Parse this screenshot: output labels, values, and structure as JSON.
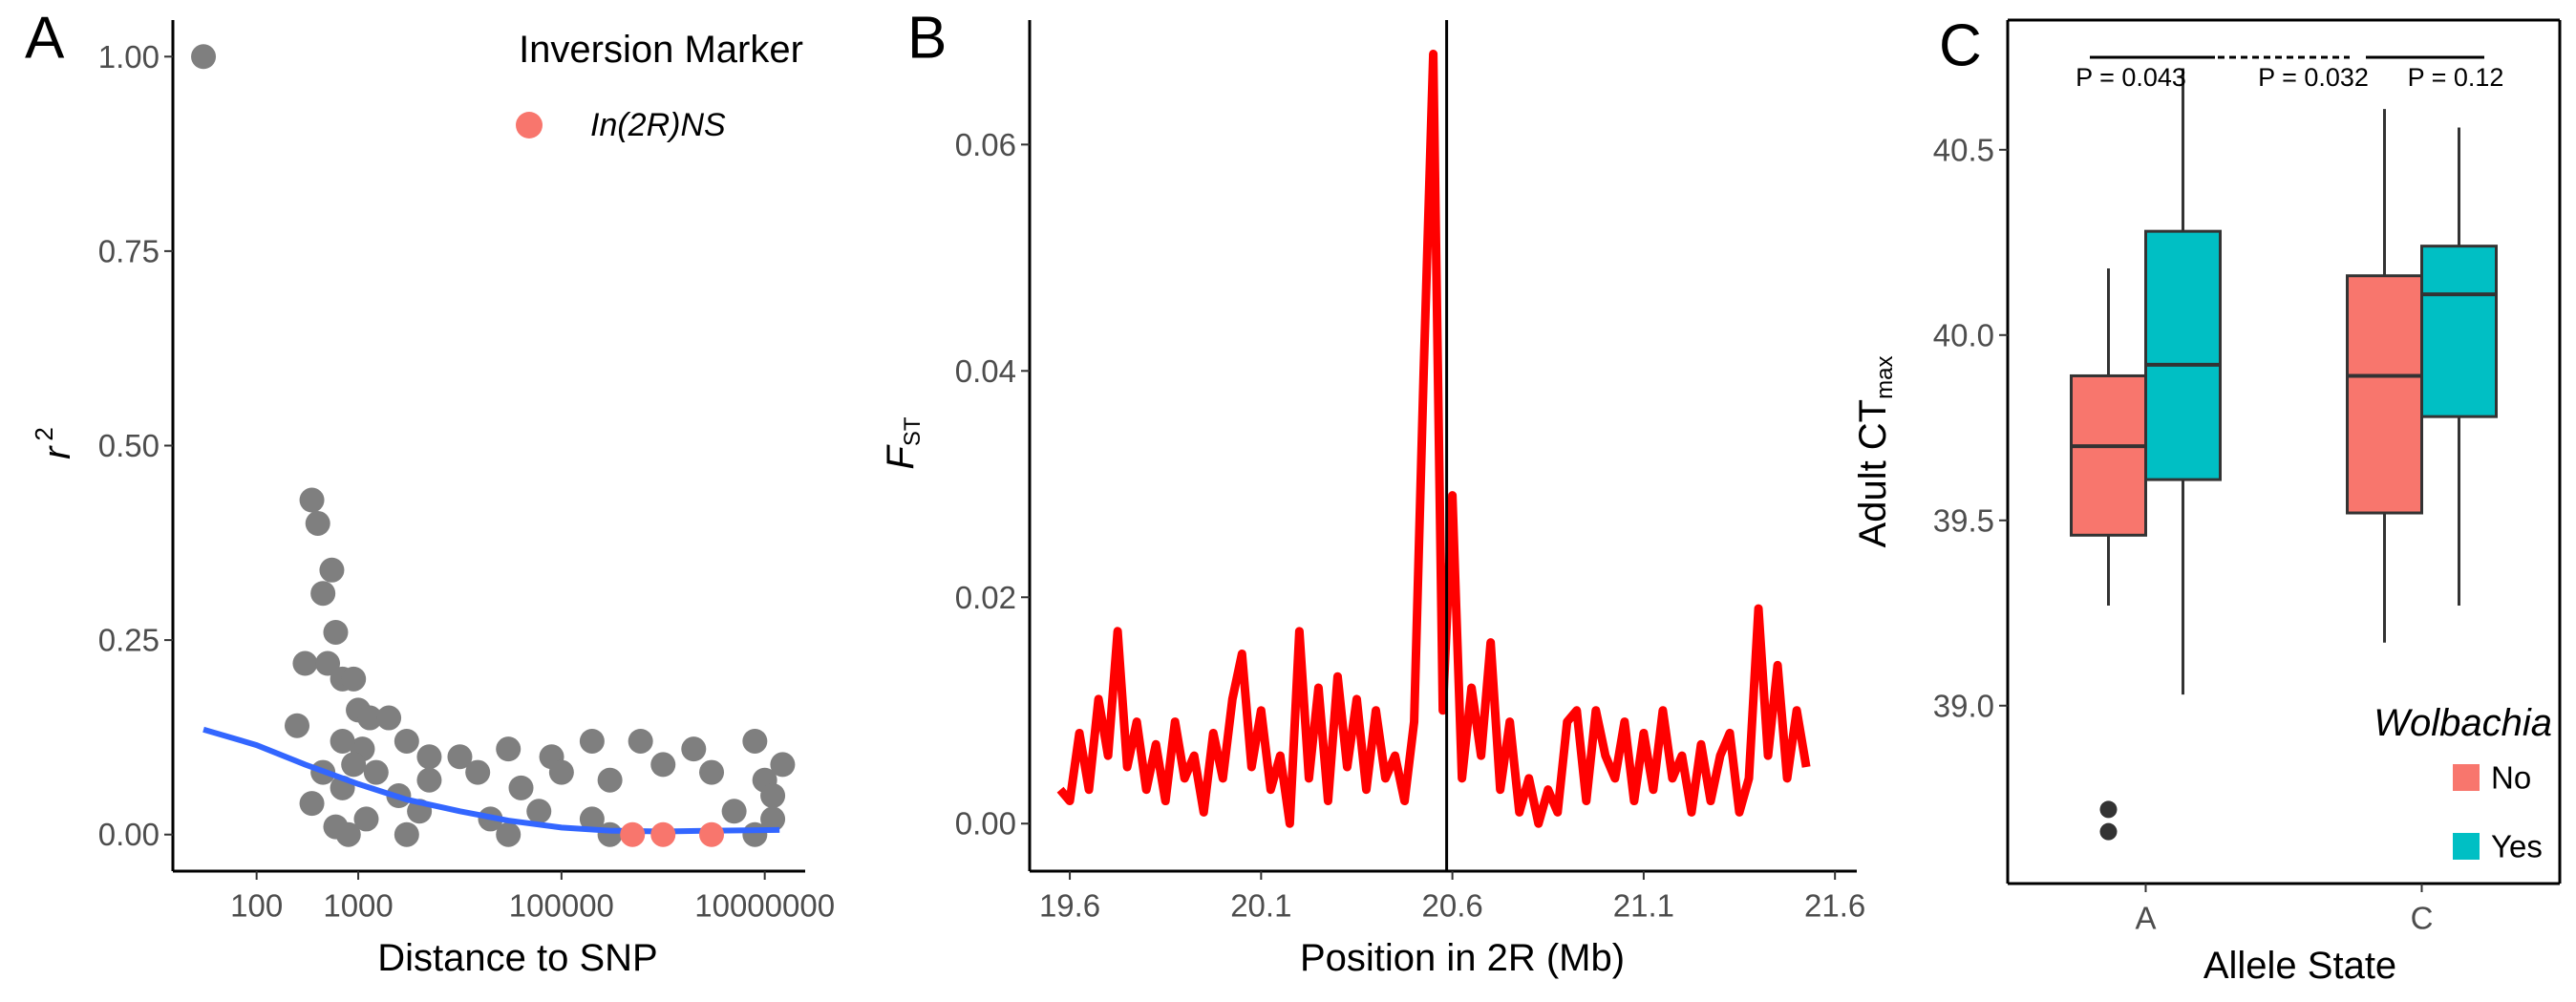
{
  "chart_data": [
    {
      "type": "scatter",
      "label": "A",
      "xlabel": "Distance to SNP",
      "ylabel": "r",
      "ylabel_sup": "2",
      "xlog": true,
      "xlim": [
        15,
        25000000
      ],
      "xticks": [
        100,
        1000,
        100000,
        10000000
      ],
      "ylim": [
        -0.047,
        1.047
      ],
      "yticks": [
        {
          "value": 0,
          "label": "0.00"
        },
        0.25,
        {
          "value": 0.5,
          "label": "0.50"
        },
        0.75,
        {
          "value": 1,
          "label": "1.00"
        }
      ],
      "legend_title": "Inversion Marker",
      "points": {
        "color": "#7f7f7f",
        "x": [
          30,
          250,
          350,
          400,
          450,
          550,
          600,
          700,
          900,
          1000,
          300,
          500,
          1300,
          2000,
          3000,
          5000,
          10000,
          30000,
          80000,
          200000,
          600000,
          2000000,
          8000000,
          350,
          450,
          700,
          1500,
          2500,
          5000,
          15000,
          40000,
          100000,
          300000,
          1000000,
          3000000,
          10000000,
          12000000,
          600,
          1200,
          4000,
          20000,
          60000,
          200000,
          5000000,
          800,
          3000,
          30000,
          300000,
          8000000,
          12000000,
          15000000,
          1100,
          700,
          900
        ],
        "y": [
          1.0,
          0.14,
          0.43,
          0.4,
          0.31,
          0.34,
          0.26,
          0.2,
          0.2,
          0.16,
          0.22,
          0.22,
          0.15,
          0.15,
          0.12,
          0.1,
          0.1,
          0.11,
          0.1,
          0.12,
          0.12,
          0.11,
          0.12,
          0.04,
          0.08,
          0.06,
          0.08,
          0.05,
          0.07,
          0.08,
          0.06,
          0.08,
          0.07,
          0.09,
          0.08,
          0.07,
          0.02,
          0.01,
          0.02,
          0.03,
          0.02,
          0.03,
          0.02,
          0.03,
          0.0,
          0.0,
          0.0,
          0.0,
          0.0,
          0.05,
          0.09,
          0.11,
          0.12,
          0.09
        ]
      },
      "highlight": {
        "name": "In(2R)NS",
        "color": "#f8766d",
        "x": [
          500000,
          1000000,
          3000000
        ],
        "y": [
          0.0,
          0.0,
          0.0
        ]
      },
      "trend": {
        "color": "#3366ff",
        "x": [
          30,
          100,
          300,
          1000,
          3000,
          10000,
          30000,
          100000,
          300000,
          1000000,
          3000000,
          14000000
        ],
        "y": [
          0.135,
          0.115,
          0.09,
          0.065,
          0.045,
          0.03,
          0.018,
          0.009,
          0.005,
          0.004,
          0.005,
          0.006
        ]
      }
    },
    {
      "type": "line",
      "label": "B",
      "xlabel": "Position in 2R (Mb)",
      "ylabel": "F",
      "ylabel_sub": "ST",
      "color": "#ff0000",
      "xlim": [
        19.495,
        21.657
      ],
      "xticks": [
        19.6,
        20.1,
        20.6,
        21.1,
        21.6
      ],
      "ylim": [
        -0.0042,
        0.071
      ],
      "yticks": [
        {
          "value": 0,
          "label": "0.00"
        },
        0.02,
        0.04,
        0.06
      ],
      "vline": 20.585,
      "x": [
        19.575,
        19.6,
        19.625,
        19.65,
        19.675,
        19.7,
        19.725,
        19.75,
        19.775,
        19.8,
        19.825,
        19.85,
        19.875,
        19.9,
        19.925,
        19.95,
        19.975,
        20.0,
        20.025,
        20.05,
        20.075,
        20.1,
        20.125,
        20.15,
        20.175,
        20.2,
        20.225,
        20.25,
        20.275,
        20.3,
        20.325,
        20.35,
        20.375,
        20.4,
        20.425,
        20.45,
        20.475,
        20.5,
        20.525,
        20.55,
        20.575,
        20.6,
        20.625,
        20.65,
        20.675,
        20.7,
        20.725,
        20.75,
        20.775,
        20.8,
        20.825,
        20.85,
        20.875,
        20.9,
        20.925,
        20.95,
        20.975,
        21.0,
        21.025,
        21.05,
        21.075,
        21.1,
        21.125,
        21.15,
        21.175,
        21.2,
        21.225,
        21.25,
        21.275,
        21.3,
        21.325,
        21.35,
        21.375,
        21.4,
        21.425,
        21.45,
        21.475,
        21.5,
        21.525
      ],
      "y": [
        0.003,
        0.002,
        0.008,
        0.003,
        0.011,
        0.006,
        0.017,
        0.005,
        0.009,
        0.003,
        0.007,
        0.002,
        0.009,
        0.004,
        0.006,
        0.001,
        0.008,
        0.004,
        0.011,
        0.015,
        0.005,
        0.01,
        0.003,
        0.006,
        0.0,
        0.017,
        0.004,
        0.012,
        0.002,
        0.013,
        0.005,
        0.011,
        0.003,
        0.01,
        0.004,
        0.006,
        0.002,
        0.009,
        0.04,
        0.068,
        0.01,
        0.029,
        0.004,
        0.012,
        0.006,
        0.016,
        0.003,
        0.009,
        0.001,
        0.004,
        0.0,
        0.003,
        0.001,
        0.009,
        0.01,
        0.002,
        0.01,
        0.006,
        0.004,
        0.009,
        0.002,
        0.008,
        0.003,
        0.01,
        0.004,
        0.006,
        0.001,
        0.007,
        0.002,
        0.006,
        0.008,
        0.001,
        0.004,
        0.019,
        0.006,
        0.014,
        0.004,
        0.01,
        0.005
      ]
    },
    {
      "type": "box",
      "label": "C",
      "xlabel": "Allele State",
      "ylabel": "Adult CT",
      "ylabel_sub": "max",
      "categories": [
        "A",
        "C"
      ],
      "ylim": [
        38.52,
        40.85
      ],
      "yticks": [
        {
          "value": 39,
          "label": "39.0"
        },
        39.5,
        {
          "value": 40,
          "label": "40.0"
        },
        40.5
      ],
      "legend_title": "Wolbachia",
      "series": [
        {
          "name": "No",
          "color": "#f8766d",
          "boxes": [
            {
              "min": 39.27,
              "q1": 39.46,
              "median": 39.7,
              "q3": 39.89,
              "max": 40.18,
              "outliers": [
                38.72,
                38.66
              ]
            },
            {
              "min": 39.17,
              "q1": 39.52,
              "median": 39.89,
              "q3": 40.16,
              "max": 40.61,
              "outliers": []
            }
          ]
        },
        {
          "name": "Yes",
          "color": "#00bfc4",
          "boxes": [
            {
              "min": 39.03,
              "q1": 39.61,
              "median": 39.92,
              "q3": 40.28,
              "max": 40.72,
              "outliers": []
            },
            {
              "min": 39.27,
              "q1": 39.78,
              "median": 40.11,
              "q3": 40.24,
              "max": 40.56,
              "outliers": []
            }
          ]
        }
      ],
      "annotations": [
        {
          "text": "P = 0.043",
          "line": "solid"
        },
        {
          "text": "P = 0.032",
          "line": "dashed"
        },
        {
          "text": "P = 0.12",
          "line": "solid"
        }
      ]
    }
  ]
}
